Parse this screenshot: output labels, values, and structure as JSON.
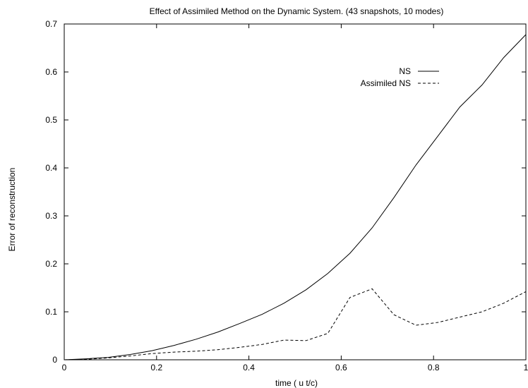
{
  "chart_data": {
    "type": "line",
    "title": "Effect of Assimiled Method on the Dynamic System. (43 snapshots, 10 modes)",
    "xlabel": "time ( u t/c)",
    "ylabel": "Error of reconstruction",
    "xlim": [
      0,
      1
    ],
    "ylim": [
      0,
      0.7
    ],
    "xticks": [
      0,
      0.2,
      0.4,
      0.6,
      0.8,
      1
    ],
    "xtick_labels": [
      "0",
      "0.2",
      "0.4",
      "0.6",
      "0.8",
      "1"
    ],
    "yticks": [
      0,
      0.1,
      0.2,
      0.3,
      0.4,
      0.5,
      0.6,
      0.7
    ],
    "ytick_labels": [
      "0",
      "0.1",
      "0.2",
      "0.3",
      "0.4",
      "0.5",
      "0.6",
      "0.7"
    ],
    "grid": false,
    "legend_position": "top-right",
    "series": [
      {
        "name": "NS",
        "style": "solid",
        "color": "#000000",
        "x": [
          0,
          0.048,
          0.095,
          0.143,
          0.19,
          0.238,
          0.286,
          0.333,
          0.381,
          0.429,
          0.476,
          0.524,
          0.571,
          0.619,
          0.667,
          0.714,
          0.762,
          0.81,
          0.857,
          0.905,
          0.952,
          1.0
        ],
        "y": [
          0,
          0.002,
          0.005,
          0.011,
          0.019,
          0.03,
          0.043,
          0.058,
          0.076,
          0.095,
          0.118,
          0.146,
          0.18,
          0.222,
          0.275,
          0.338,
          0.406,
          0.467,
          0.527,
          0.573,
          0.63,
          0.678
        ]
      },
      {
        "name": "Assimiled NS",
        "style": "dashed",
        "color": "#000000",
        "x": [
          0,
          0.048,
          0.095,
          0.143,
          0.19,
          0.238,
          0.286,
          0.333,
          0.381,
          0.429,
          0.476,
          0.524,
          0.571,
          0.619,
          0.667,
          0.714,
          0.762,
          0.81,
          0.857,
          0.905,
          0.952,
          1.0
        ],
        "y": [
          0,
          0.001,
          0.004,
          0.008,
          0.013,
          0.016,
          0.018,
          0.021,
          0.026,
          0.032,
          0.041,
          0.04,
          0.055,
          0.13,
          0.148,
          0.094,
          0.072,
          0.078,
          0.089,
          0.1,
          0.118,
          0.142
        ]
      }
    ]
  }
}
